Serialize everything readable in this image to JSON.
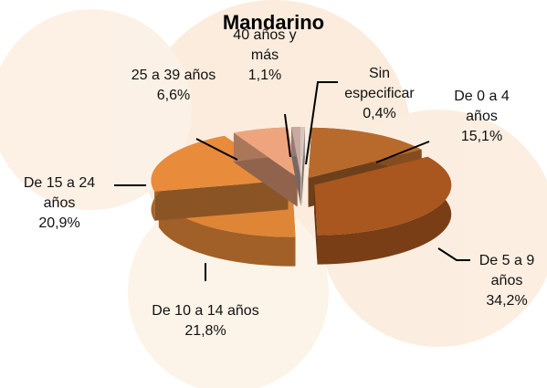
{
  "chart_data": {
    "type": "pie",
    "title": "Mandarino",
    "categories": [
      "Sin especificar",
      "De 0 a 4 años",
      "De 5 a 9 años",
      "De 10 a 14 años",
      "De 15 a 24 años",
      "25 a 39 años",
      "40 años y más"
    ],
    "values": [
      0.4,
      15.1,
      34.2,
      21.8,
      20.9,
      6.6,
      1.1
    ],
    "value_labels": [
      "0,4%",
      "15,1%",
      "34,2%",
      "21,8%",
      "20,9%",
      "6,6%",
      "1,1%"
    ],
    "colors": [
      "#d8c8c0",
      "#b86a2c",
      "#a9561f",
      "#df8536",
      "#e88c3c",
      "#eea57e",
      "#c8aaa2"
    ]
  }
}
